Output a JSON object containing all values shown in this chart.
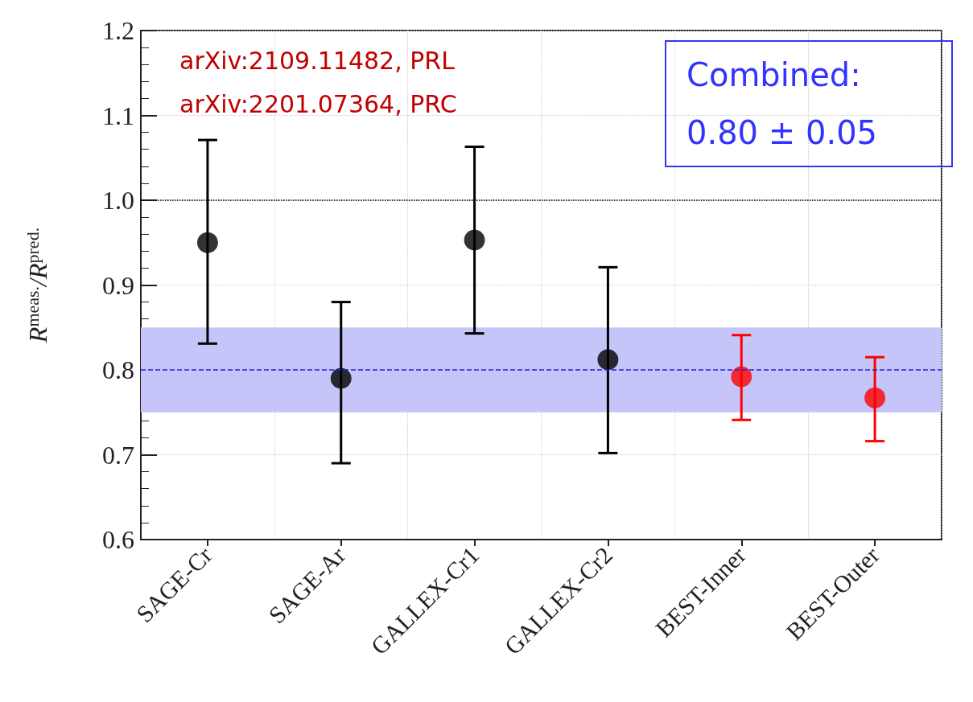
{
  "chart_data": {
    "type": "scatter",
    "ylabel": "R$^{meas.}$/R$^{pred.}$",
    "categories": [
      "SAGE-Cr",
      "SAGE-Ar",
      "GALLEX-Cr1",
      "GALLEX-Cr2",
      "BEST-Inner",
      "BEST-Outer"
    ],
    "values": [
      0.95,
      0.79,
      0.953,
      0.812,
      0.792,
      0.767
    ],
    "errors": [
      [
        0.831,
        1.071
      ],
      [
        0.69,
        0.88
      ],
      [
        0.843,
        1.063
      ],
      [
        0.702,
        0.921
      ],
      [
        0.741,
        0.841
      ],
      [
        0.716,
        0.815
      ]
    ],
    "colors": [
      "#000000",
      "#000000",
      "#000000",
      "#000000",
      "#ff0000",
      "#ff0000"
    ],
    "ylim": [
      0.6,
      1.2
    ],
    "yticks": [
      {
        "value": 0.6,
        "label": "0.6"
      },
      {
        "value": 0.7,
        "label": "0.7"
      },
      {
        "value": 0.8,
        "label": "0.8"
      },
      {
        "value": 0.9,
        "label": "0.9"
      },
      {
        "value": 1,
        "label": "1.0"
      },
      {
        "value": 1.1,
        "label": "1.1"
      },
      {
        "value": 1.2,
        "label": "1.2"
      }
    ],
    "bands": [
      {
        "axis": "y",
        "from": 0.75,
        "to": 0.85,
        "color": "#c5c5fa"
      }
    ],
    "ref_lines": [
      {
        "axis": "y",
        "value": 0.8,
        "color": "#2020e0",
        "line_style": "dashed"
      },
      {
        "axis": "y",
        "value": 1.0,
        "color": "#000000",
        "line_style": "dotted"
      }
    ],
    "annotations": [
      "arXiv:2109.11482, PRL",
      "arXiv:2201.07364, PRC",
      "Combined:\n0.80 ± 0.05"
    ],
    "grid": true,
    "marker": "circle"
  }
}
